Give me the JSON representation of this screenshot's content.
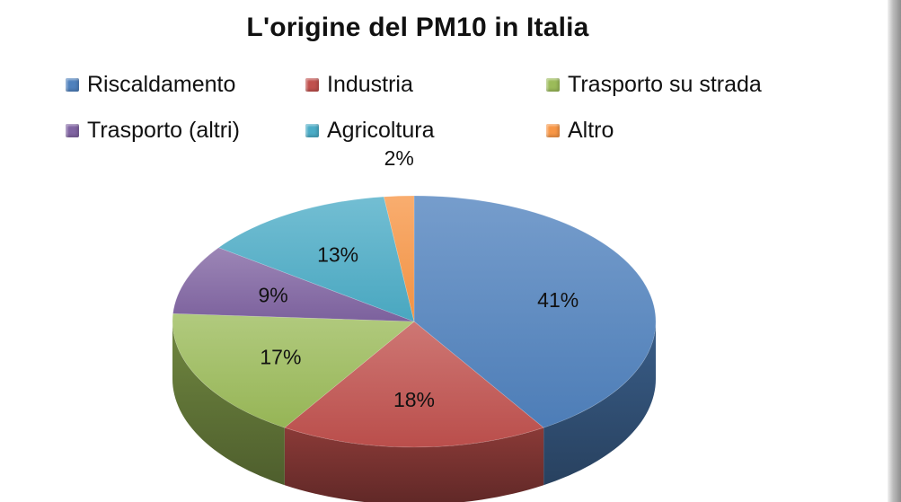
{
  "chart_data": {
    "type": "pie",
    "title": "L'origine del PM10 in Italia",
    "legend_position": "top",
    "style": "3d",
    "slices": [
      {
        "name": "Riscaldamento",
        "value": 41,
        "label": "41%",
        "color": "#4f81bd"
      },
      {
        "name": "Industria",
        "value": 18,
        "label": "18%",
        "color": "#c0504d"
      },
      {
        "name": "Trasporto su strada",
        "value": 17,
        "label": "17%",
        "color": "#9bbb59"
      },
      {
        "name": "Trasporto (altri)",
        "value": 9,
        "label": "9%",
        "color": "#8064a2"
      },
      {
        "name": "Agricoltura",
        "value": 13,
        "label": "13%",
        "color": "#4bacc6"
      },
      {
        "name": "Altro",
        "value": 2,
        "label": "2%",
        "color": "#f79646"
      }
    ]
  }
}
